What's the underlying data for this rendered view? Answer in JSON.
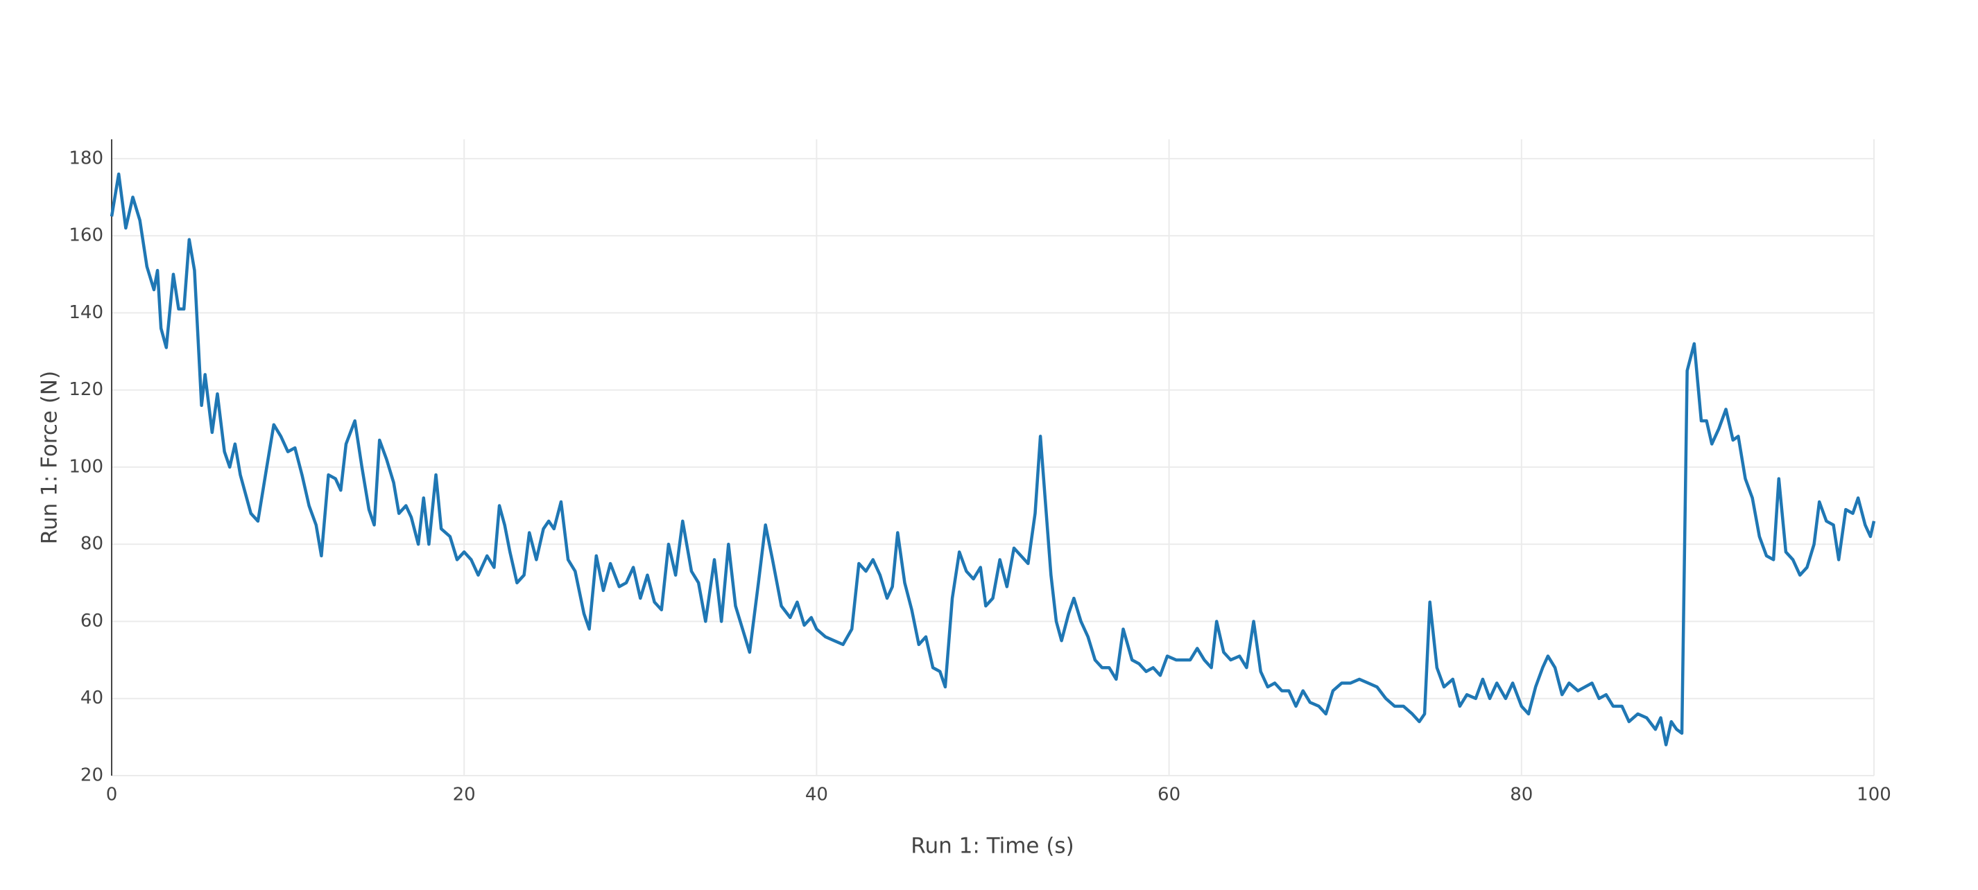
{
  "chart_data": {
    "type": "line",
    "x_label": "Run 1: Time (s)",
    "y_label": "Run 1: Force (N)",
    "xlim": [
      0,
      100
    ],
    "xticks": [
      0,
      20,
      40,
      60,
      80,
      100
    ],
    "ylim": [
      20,
      185
    ],
    "yticks": [
      20,
      40,
      60,
      80,
      100,
      120,
      140,
      160,
      180
    ],
    "grid": true,
    "x": [
      0,
      0.4,
      0.8,
      1.2,
      1.6,
      2.0,
      2.4,
      2.6,
      2.8,
      3.1,
      3.5,
      3.8,
      4.1,
      4.4,
      4.7,
      5.1,
      5.3,
      5.7,
      6.0,
      6.4,
      6.7,
      7.0,
      7.3,
      7.6,
      7.9,
      8.3,
      8.8,
      9.2,
      9.6,
      10.0,
      10.4,
      10.8,
      11.2,
      11.6,
      11.9,
      12.3,
      12.7,
      13.0,
      13.3,
      13.8,
      14.2,
      14.6,
      14.9,
      15.2,
      15.6,
      16.0,
      16.3,
      16.7,
      17.0,
      17.4,
      17.7,
      18.0,
      18.4,
      18.7,
      19.2,
      19.6,
      20.0,
      20.4,
      20.8,
      21.3,
      21.7,
      22.0,
      22.3,
      22.6,
      23.0,
      23.4,
      23.7,
      24.1,
      24.5,
      24.8,
      25.1,
      25.5,
      25.9,
      26.3,
      26.8,
      27.1,
      27.5,
      27.9,
      28.3,
      28.8,
      29.2,
      29.6,
      30.0,
      30.4,
      30.8,
      31.2,
      31.6,
      32.0,
      32.4,
      32.9,
      33.3,
      33.7,
      34.2,
      34.6,
      35.0,
      35.4,
      35.8,
      36.2,
      36.7,
      37.1,
      37.5,
      38.0,
      38.5,
      38.9,
      39.3,
      39.7,
      40.0,
      40.5,
      41.0,
      41.5,
      42.0,
      42.4,
      42.8,
      43.2,
      43.6,
      44.0,
      44.3,
      44.6,
      45.0,
      45.4,
      45.8,
      46.2,
      46.6,
      47.0,
      47.3,
      47.7,
      48.1,
      48.5,
      48.9,
      49.3,
      49.6,
      50.0,
      50.4,
      50.8,
      51.2,
      51.6,
      52.0,
      52.4,
      52.7,
      53.0,
      53.3,
      53.6,
      53.9,
      54.3,
      54.6,
      55.0,
      55.4,
      55.8,
      56.2,
      56.6,
      57.0,
      57.4,
      57.9,
      58.3,
      58.7,
      59.1,
      59.5,
      59.9,
      60.4,
      60.8,
      61.2,
      61.6,
      62.0,
      62.4,
      62.7,
      63.1,
      63.5,
      64.0,
      64.4,
      64.8,
      65.2,
      65.6,
      66.0,
      66.4,
      66.8,
      67.2,
      67.6,
      68.0,
      68.5,
      68.9,
      69.3,
      69.8,
      70.3,
      70.8,
      71.3,
      71.8,
      72.3,
      72.8,
      73.3,
      73.8,
      74.2,
      74.5,
      74.8,
      75.2,
      75.6,
      76.1,
      76.5,
      76.9,
      77.4,
      77.8,
      78.2,
      78.6,
      79.1,
      79.5,
      80.0,
      80.4,
      80.8,
      81.2,
      81.5,
      81.9,
      82.3,
      82.7,
      83.2,
      83.6,
      84.0,
      84.4,
      84.8,
      85.2,
      85.7,
      86.1,
      86.6,
      87.1,
      87.6,
      87.9,
      88.2,
      88.5,
      88.8,
      89.1,
      89.4,
      89.8,
      90.2,
      90.5,
      90.8,
      91.2,
      91.6,
      92.0,
      92.3,
      92.7,
      93.1,
      93.5,
      93.9,
      94.3,
      94.6,
      95.0,
      95.4,
      95.8,
      96.2,
      96.6,
      96.9,
      97.3,
      97.7,
      98.0,
      98.4,
      98.8,
      99.1,
      99.5,
      99.8,
      100
    ],
    "series": [
      {
        "color": "#1f77b4",
        "values": [
          165,
          176,
          162,
          170,
          164,
          152,
          146,
          151,
          136,
          131,
          150,
          141,
          141,
          159,
          151,
          116,
          124,
          109,
          119,
          104,
          100,
          106,
          98,
          93,
          88,
          86,
          100,
          111,
          108,
          104,
          105,
          98,
          90,
          85,
          77,
          98,
          97,
          94,
          106,
          112,
          100,
          89,
          85,
          107,
          102,
          96,
          88,
          90,
          87,
          80,
          92,
          80,
          98,
          84,
          82,
          76,
          78,
          76,
          72,
          77,
          74,
          90,
          85,
          78,
          70,
          72,
          83,
          76,
          84,
          86,
          84,
          91,
          76,
          73,
          62,
          58,
          77,
          68,
          75,
          69,
          70,
          74,
          66,
          72,
          65,
          63,
          80,
          72,
          86,
          73,
          70,
          60,
          76,
          60,
          80,
          64,
          58,
          52,
          70,
          85,
          76,
          64,
          61,
          65,
          59,
          61,
          58,
          56,
          55,
          54,
          58,
          75,
          73,
          76,
          72,
          66,
          69,
          83,
          70,
          63,
          54,
          56,
          48,
          47,
          43,
          66,
          78,
          73,
          71,
          74,
          64,
          66,
          76,
          69,
          79,
          77,
          75,
          88,
          108,
          90,
          72,
          60,
          55,
          62,
          66,
          60,
          56,
          50,
          48,
          48,
          45,
          58,
          50,
          49,
          47,
          48,
          46,
          51,
          50,
          50,
          50,
          53,
          50,
          48,
          60,
          52,
          50,
          51,
          48,
          60,
          47,
          43,
          44,
          42,
          42,
          38,
          42,
          39,
          38,
          36,
          42,
          44,
          44,
          45,
          44,
          43,
          40,
          38,
          38,
          36,
          34,
          36,
          65,
          48,
          43,
          45,
          38,
          41,
          40,
          45,
          40,
          44,
          40,
          44,
          38,
          36,
          43,
          48,
          51,
          48,
          41,
          44,
          42,
          43,
          44,
          40,
          41,
          38,
          38,
          34,
          36,
          35,
          32,
          35,
          28,
          34,
          32,
          31,
          125,
          132,
          112,
          112,
          106,
          110,
          115,
          107,
          108,
          97,
          92,
          82,
          77,
          76,
          97,
          78,
          76,
          72,
          74,
          80,
          91,
          86,
          85,
          76,
          89,
          88,
          92,
          85,
          82,
          86
        ]
      }
    ]
  }
}
